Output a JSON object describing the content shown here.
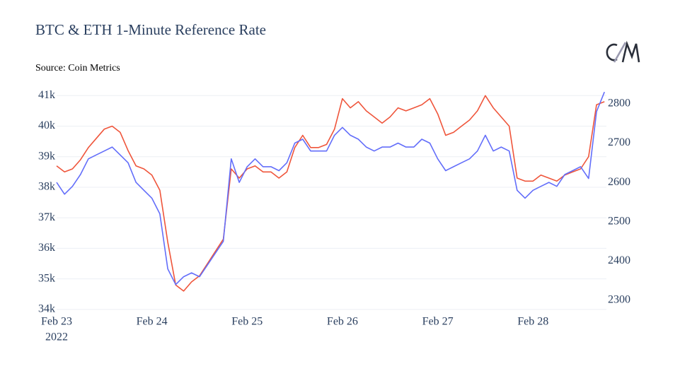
{
  "chart_data": {
    "type": "line",
    "title": "BTC & ETH 1-Minute Reference Rate",
    "subtitle": "Source: Coin Metrics",
    "x_axis_year": "2022",
    "x": [
      "2022-02-23T00:00",
      "2022-02-23T02:00",
      "2022-02-23T04:00",
      "2022-02-23T06:00",
      "2022-02-23T08:00",
      "2022-02-23T10:00",
      "2022-02-23T12:00",
      "2022-02-23T14:00",
      "2022-02-23T16:00",
      "2022-02-23T18:00",
      "2022-02-23T20:00",
      "2022-02-23T22:00",
      "2022-02-24T00:00",
      "2022-02-24T02:00",
      "2022-02-24T04:00",
      "2022-02-24T06:00",
      "2022-02-24T08:00",
      "2022-02-24T10:00",
      "2022-02-24T12:00",
      "2022-02-24T14:00",
      "2022-02-24T16:00",
      "2022-02-24T18:00",
      "2022-02-24T20:00",
      "2022-02-24T22:00",
      "2022-02-25T00:00",
      "2022-02-25T02:00",
      "2022-02-25T04:00",
      "2022-02-25T06:00",
      "2022-02-25T08:00",
      "2022-02-25T10:00",
      "2022-02-25T12:00",
      "2022-02-25T14:00",
      "2022-02-25T16:00",
      "2022-02-25T18:00",
      "2022-02-25T20:00",
      "2022-02-25T22:00",
      "2022-02-26T00:00",
      "2022-02-26T02:00",
      "2022-02-26T04:00",
      "2022-02-26T06:00",
      "2022-02-26T08:00",
      "2022-02-26T10:00",
      "2022-02-26T12:00",
      "2022-02-26T14:00",
      "2022-02-26T16:00",
      "2022-02-26T18:00",
      "2022-02-26T20:00",
      "2022-02-26T22:00",
      "2022-02-27T00:00",
      "2022-02-27T02:00",
      "2022-02-27T04:00",
      "2022-02-27T06:00",
      "2022-02-27T08:00",
      "2022-02-27T10:00",
      "2022-02-27T12:00",
      "2022-02-27T14:00",
      "2022-02-27T16:00",
      "2022-02-27T18:00",
      "2022-02-27T20:00",
      "2022-02-27T22:00",
      "2022-02-28T00:00",
      "2022-02-28T02:00",
      "2022-02-28T04:00",
      "2022-02-28T06:00",
      "2022-02-28T08:00",
      "2022-02-28T10:00",
      "2022-02-28T12:00",
      "2022-02-28T14:00",
      "2022-02-28T16:00",
      "2022-02-28T18:00"
    ],
    "series": [
      {
        "name": "BTC",
        "color": "#ef553b",
        "values": [
          38700,
          38500,
          38600,
          38900,
          39300,
          39600,
          39900,
          40000,
          39800,
          39200,
          38700,
          38600,
          38400,
          37900,
          36200,
          34800,
          34600,
          34900,
          35100,
          35500,
          35900,
          36300,
          38600,
          38300,
          38600,
          38700,
          38500,
          38500,
          38300,
          38500,
          39300,
          39700,
          39300,
          39300,
          39400,
          39900,
          40900,
          40600,
          40800,
          40500,
          40300,
          40100,
          40300,
          40600,
          40500,
          40600,
          40700,
          40900,
          40400,
          39700,
          39800,
          40000,
          40200,
          40500,
          41000,
          40600,
          40300,
          40000,
          38300,
          38200,
          38200,
          38400,
          38300,
          38200,
          38400,
          38500,
          38600,
          39000,
          40700,
          40800
        ]
      },
      {
        "name": "ETH",
        "color": "#636efa",
        "axis": "y2",
        "values": [
          2600,
          2570,
          2590,
          2620,
          2660,
          2670,
          2680,
          2690,
          2670,
          2650,
          2600,
          2580,
          2560,
          2520,
          2380,
          2340,
          2360,
          2370,
          2360,
          2390,
          2420,
          2450,
          2660,
          2600,
          2640,
          2660,
          2640,
          2640,
          2630,
          2650,
          2700,
          2710,
          2680,
          2680,
          2680,
          2720,
          2740,
          2720,
          2710,
          2690,
          2680,
          2690,
          2690,
          2700,
          2690,
          2690,
          2710,
          2700,
          2660,
          2630,
          2640,
          2650,
          2660,
          2680,
          2720,
          2680,
          2690,
          2680,
          2580,
          2560,
          2580,
          2590,
          2600,
          2590,
          2620,
          2630,
          2640,
          2610,
          2780,
          2830
        ]
      }
    ],
    "xlim": [
      "2022-02-23T00:00",
      "2022-02-28T18:30"
    ],
    "xticks": [
      {
        "value": "2022-02-23T00:00",
        "label": "Feb 23"
      },
      {
        "value": "2022-02-24T00:00",
        "label": "Feb 24"
      },
      {
        "value": "2022-02-25T00:00",
        "label": "Feb 25"
      },
      {
        "value": "2022-02-26T00:00",
        "label": "Feb 26"
      },
      {
        "value": "2022-02-27T00:00",
        "label": "Feb 27"
      },
      {
        "value": "2022-02-28T00:00",
        "label": "Feb 28"
      }
    ],
    "ylim": [
      33950,
      41400
    ],
    "yticks": [
      {
        "value": 34000,
        "label": "34k"
      },
      {
        "value": 35000,
        "label": "35k"
      },
      {
        "value": 36000,
        "label": "36k"
      },
      {
        "value": 37000,
        "label": "37k"
      },
      {
        "value": 38000,
        "label": "38k"
      },
      {
        "value": 39000,
        "label": "39k"
      },
      {
        "value": 40000,
        "label": "40k"
      },
      {
        "value": 41000,
        "label": "41k"
      }
    ],
    "y2lim": [
      2273,
      2852
    ],
    "y2ticks": [
      2300,
      2400,
      2500,
      2600,
      2700,
      2800
    ],
    "grid": true
  }
}
